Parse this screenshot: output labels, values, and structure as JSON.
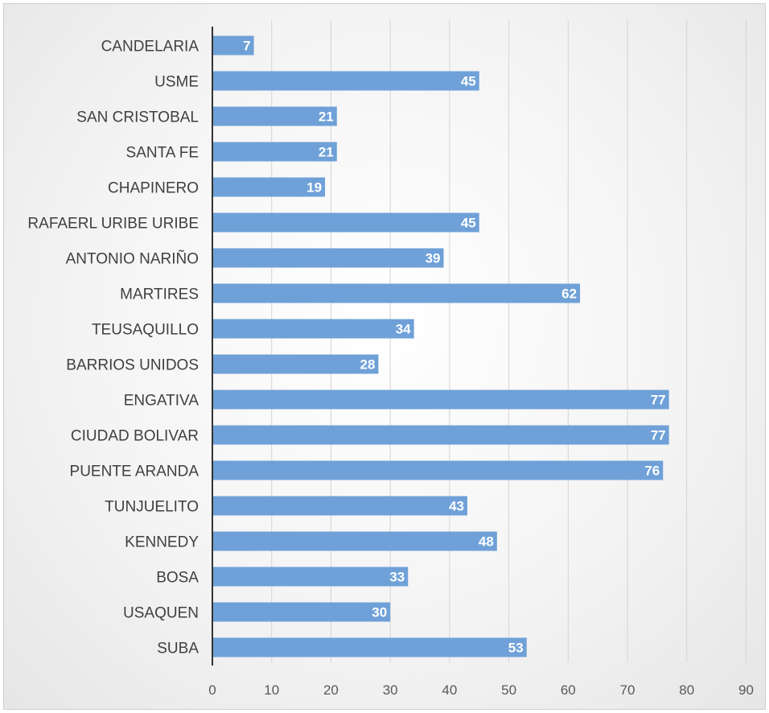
{
  "chart_data": {
    "type": "bar",
    "orientation": "horizontal",
    "categories": [
      "CANDELARIA",
      "USME",
      "SAN CRISTOBAL",
      "SANTA FE",
      "CHAPINERO",
      "RAFAERL URIBE URIBE",
      "ANTONIO NARIÑO",
      "MARTIRES",
      "TEUSAQUILLO",
      "BARRIOS UNIDOS",
      "ENGATIVA",
      "CIUDAD BOLIVAR",
      "PUENTE ARANDA",
      "TUNJUELITO",
      "KENNEDY",
      "BOSA",
      "USAQUEN",
      "SUBA"
    ],
    "values": [
      7,
      45,
      21,
      21,
      19,
      45,
      39,
      62,
      34,
      28,
      77,
      77,
      76,
      43,
      48,
      33,
      30,
      53
    ],
    "xlim": [
      0,
      90
    ],
    "xticks": [
      "0",
      "10",
      "20",
      "30",
      "40",
      "50",
      "60",
      "70",
      "80",
      "90"
    ],
    "grid": "vertical",
    "legend": "none",
    "data_labels": "inside-end",
    "bar_color": "#6fa1d8",
    "title": "",
    "xlabel": "",
    "ylabel": ""
  }
}
